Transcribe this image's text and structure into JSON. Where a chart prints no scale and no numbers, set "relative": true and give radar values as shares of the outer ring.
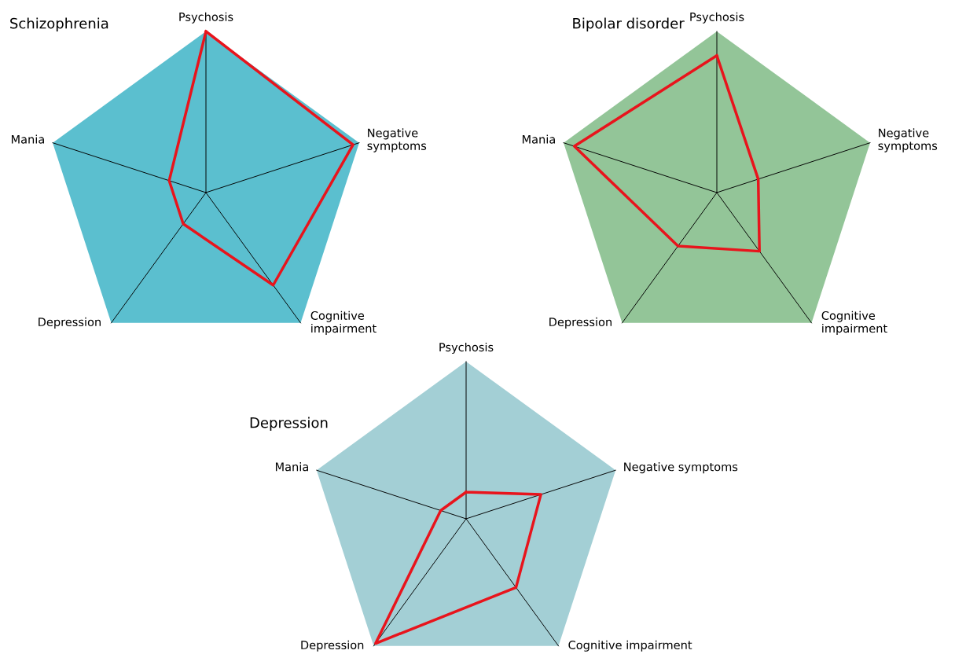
{
  "chart_data": [
    {
      "type": "radar",
      "title": "Schizophrenia",
      "relative": true,
      "categories": [
        "Psychosis",
        "Negative\nsymptoms",
        "Cognitive\nimpairment",
        "Depression",
        "Mania"
      ],
      "series": [
        {
          "color": "#e8141c",
          "values": [
            1.0,
            0.96,
            0.71,
            0.24,
            0.24
          ]
        }
      ]
    },
    {
      "type": "radar",
      "title": "Bipolar disorder",
      "relative": true,
      "categories": [
        "Psychosis",
        "Negative\nsymptoms",
        "Cognitive\nimpairment",
        "Depression",
        "Mania"
      ],
      "series": [
        {
          "color": "#e8141c",
          "values": [
            0.85,
            0.27,
            0.45,
            0.41,
            0.93
          ]
        }
      ]
    },
    {
      "type": "radar",
      "title": "Depression",
      "relative": true,
      "categories": [
        "Psychosis",
        "Negative symptoms",
        "Cognitive impairment",
        "Depression",
        "Mania"
      ],
      "series": [
        {
          "color": "#e8141c",
          "values": [
            0.17,
            0.5,
            0.54,
            0.98,
            0.17
          ]
        }
      ]
    }
  ]
}
